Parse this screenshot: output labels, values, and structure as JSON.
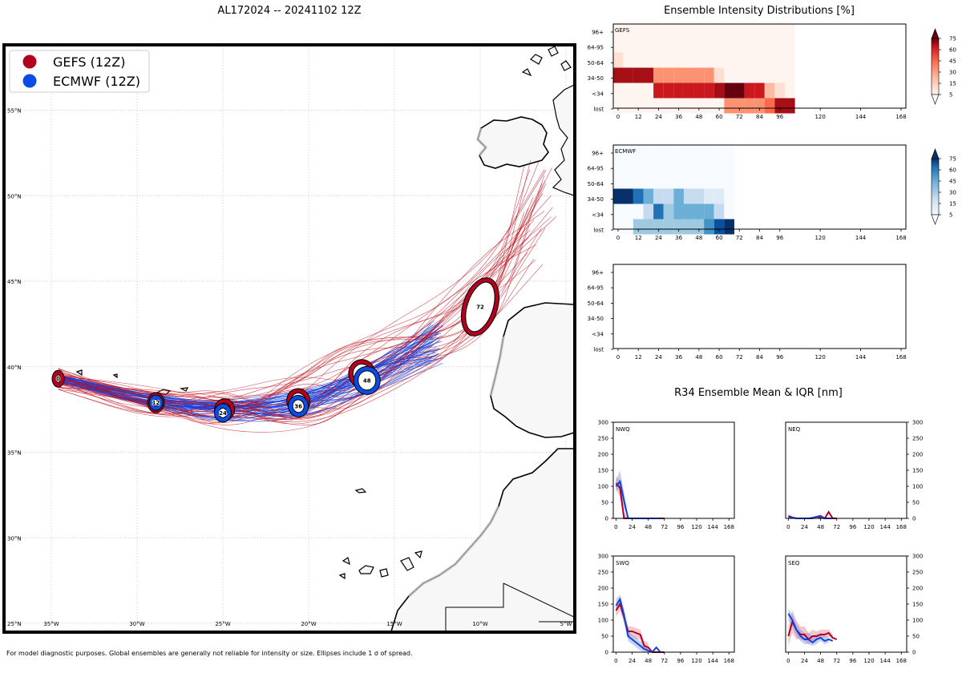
{
  "map": {
    "title": "AL172024 -- 20241102 12Z",
    "legend": [
      {
        "label": "GEFS (12Z)",
        "color": "#b2001e"
      },
      {
        "label": "ECMWF (12Z)",
        "color": "#0a4ce6"
      }
    ],
    "lat_labels": [
      "55°N",
      "50°N",
      "45°N",
      "40°N",
      "35°N",
      "30°N",
      "25°N"
    ],
    "lon_labels": [
      "35°W",
      "30°W",
      "25°W",
      "20°W",
      "15°W",
      "10°W",
      "5°W"
    ],
    "footer": "For model diagnostic purposes. Global ensembles are generally not reliable for intensity or size. Ellipses include 1 σ of spread.",
    "gefs_color": "#c0101e",
    "ecmwf_color": "#1040e0"
  },
  "chart_data": [
    {
      "type": "line",
      "title": "AL172024 -- 20241102 12Z",
      "xlabel": "Longitude",
      "ylabel": "Latitude",
      "xlim": [
        -37.7,
        -5.0
      ],
      "ylim": [
        25.0,
        58.0
      ],
      "series": [
        {
          "name": "GEFS (12Z) mean track",
          "color": "#b2001e",
          "x": [
            -34.6,
            -28.9,
            -24.9,
            -20.6,
            -16.9,
            -10.0
          ],
          "y": [
            39.3,
            37.9,
            37.5,
            38.0,
            39.6,
            43.5
          ],
          "hours": [
            0,
            12,
            24,
            36,
            48,
            72
          ]
        },
        {
          "name": "ECMWF (12Z) mean track",
          "color": "#0a4ce6",
          "x": [
            -34.6,
            -28.9,
            -25.0,
            -20.6,
            -16.6
          ],
          "y": [
            39.3,
            37.9,
            37.3,
            37.7,
            39.2
          ],
          "hours": [
            0,
            12,
            24,
            36,
            48
          ]
        }
      ],
      "markers": [
        {
          "model": "GEFS",
          "hour": "0",
          "lon": -34.6,
          "lat": 39.3
        },
        {
          "model": "GEFS",
          "hour": "12",
          "lon": -28.9,
          "lat": 37.9
        },
        {
          "model": "GEFS",
          "hour": "24",
          "lon": -24.9,
          "lat": 37.5
        },
        {
          "model": "GEFS",
          "hour": "36",
          "lon": -20.6,
          "lat": 38.0
        },
        {
          "model": "GEFS",
          "hour": "48",
          "lon": -16.9,
          "lat": 39.6
        },
        {
          "model": "GEFS",
          "hour": "72",
          "lon": -10.0,
          "lat": 43.5
        },
        {
          "model": "ECMWF",
          "hour": "12",
          "lon": -28.9,
          "lat": 37.9
        },
        {
          "model": "ECMWF",
          "hour": "24",
          "lon": -25.0,
          "lat": 37.3
        },
        {
          "model": "ECMWF",
          "hour": "36",
          "lon": -20.6,
          "lat": 37.7
        },
        {
          "model": "ECMWF",
          "hour": "48",
          "lon": -16.6,
          "lat": 39.2
        }
      ]
    },
    {
      "type": "heatmap",
      "title": "Ensemble Intensity Distributions [%]",
      "label": "GEFS",
      "rows": [
        "lost",
        "<34",
        "34-50",
        "50-64",
        "64-95",
        "96+"
      ],
      "hours": [
        0,
        6,
        12,
        18,
        24,
        30,
        36,
        42,
        48,
        54,
        60,
        66,
        72,
        78,
        84,
        90,
        96,
        102
      ],
      "values": [
        [
          0,
          0,
          0,
          0,
          0,
          0,
          0,
          0,
          0,
          0,
          5,
          40,
          40,
          40,
          40,
          50,
          90,
          90
        ],
        [
          0,
          0,
          0,
          5,
          70,
          70,
          75,
          75,
          75,
          70,
          90,
          95,
          95,
          75,
          70,
          30,
          10,
          0
        ],
        [
          90,
          90,
          90,
          90,
          40,
          40,
          40,
          40,
          40,
          40,
          10,
          0,
          0,
          0,
          0,
          0,
          0,
          0
        ],
        [
          10,
          0,
          0,
          0,
          0,
          0,
          0,
          0,
          0,
          0,
          0,
          0,
          0,
          0,
          0,
          0,
          0,
          0
        ],
        [
          3,
          3,
          3,
          3,
          3,
          3,
          3,
          3,
          3,
          3,
          3,
          3,
          3,
          3,
          3,
          3,
          3,
          3
        ],
        [
          3,
          3,
          3,
          3,
          3,
          3,
          3,
          3,
          3,
          3,
          3,
          3,
          3,
          3,
          3,
          3,
          3,
          3
        ]
      ]
    },
    {
      "type": "heatmap",
      "label": "ECMWF",
      "rows": [
        "lost",
        "<34",
        "34-50",
        "50-64",
        "64-95",
        "96+"
      ],
      "hours": [
        0,
        6,
        12,
        18,
        24,
        30,
        36,
        42,
        48,
        54,
        60,
        66
      ],
      "values": [
        [
          0,
          0,
          35,
          35,
          35,
          35,
          35,
          35,
          35,
          60,
          90,
          95
        ],
        [
          0,
          0,
          5,
          20,
          70,
          40,
          45,
          45,
          45,
          45,
          20,
          5
        ],
        [
          95,
          95,
          75,
          45,
          25,
          25,
          45,
          25,
          25,
          15,
          15,
          0
        ],
        [
          2,
          2,
          2,
          2,
          2,
          2,
          2,
          2,
          2,
          2,
          2,
          2
        ],
        [
          2,
          2,
          2,
          2,
          2,
          2,
          2,
          2,
          2,
          2,
          2,
          2
        ],
        [
          2,
          2,
          2,
          2,
          2,
          2,
          2,
          2,
          2,
          2,
          2,
          2
        ]
      ]
    },
    {
      "type": "heatmap",
      "label": "",
      "rows": [
        "lost",
        "<34",
        "34-50",
        "50-64",
        "64-95",
        "96+"
      ],
      "hours": [],
      "values": []
    },
    {
      "type": "line",
      "title": "R34 Ensemble Mean & IQR [nm]",
      "label": "NWQ",
      "ylim": [
        0,
        300
      ],
      "xlim": [
        -4,
        176
      ],
      "series": [
        {
          "name": "GEFS",
          "x": [
            0,
            6,
            12,
            18,
            24,
            30,
            36,
            42,
            48,
            54,
            60,
            66,
            72
          ],
          "y": [
            110,
            95,
            0,
            0,
            0,
            0,
            0,
            0,
            0,
            0,
            0,
            0,
            0
          ]
        },
        {
          "name": "ECMWF",
          "x": [
            0,
            6,
            12,
            18,
            24,
            30,
            36,
            42,
            48,
            54,
            60,
            66
          ],
          "y": [
            100,
            115,
            55,
            0,
            0,
            0,
            0,
            0,
            0,
            0,
            0,
            0
          ]
        }
      ],
      "iqr": [
        {
          "name": "GEFS",
          "x": [
            0,
            6,
            12,
            18,
            24
          ],
          "low": [
            90,
            70,
            0,
            0,
            0
          ],
          "high": [
            130,
            120,
            20,
            0,
            0
          ]
        },
        {
          "name": "ECMWF",
          "x": [
            0,
            6,
            12,
            18,
            24
          ],
          "low": [
            85,
            95,
            30,
            0,
            0
          ],
          "high": [
            120,
            150,
            80,
            5,
            0
          ]
        }
      ]
    },
    {
      "type": "line",
      "label": "NEQ",
      "ylim": [
        0,
        300
      ],
      "xlim": [
        -4,
        176
      ],
      "series": [
        {
          "name": "GEFS",
          "x": [
            0,
            6,
            12,
            18,
            24,
            30,
            36,
            42,
            48,
            54,
            60,
            66,
            72
          ],
          "y": [
            8,
            3,
            0,
            0,
            0,
            0,
            0,
            5,
            2,
            0,
            20,
            0,
            0
          ]
        },
        {
          "name": "ECMWF",
          "x": [
            0,
            6,
            12,
            18,
            24,
            30,
            36,
            42,
            48,
            54,
            60,
            66
          ],
          "y": [
            5,
            2,
            0,
            0,
            0,
            0,
            2,
            5,
            8,
            0,
            0,
            0
          ]
        }
      ],
      "iqr": []
    },
    {
      "type": "line",
      "label": "SWQ",
      "ylim": [
        0,
        300
      ],
      "xlim": [
        -4,
        176
      ],
      "series": [
        {
          "name": "GEFS",
          "x": [
            0,
            6,
            12,
            18,
            24,
            30,
            36,
            42,
            48,
            54,
            60,
            66,
            72
          ],
          "y": [
            130,
            150,
            110,
            65,
            65,
            60,
            55,
            20,
            15,
            0,
            0,
            0,
            0
          ]
        },
        {
          "name": "ECMWF",
          "x": [
            0,
            6,
            12,
            18,
            24,
            30,
            36,
            42,
            48,
            54,
            60,
            66
          ],
          "y": [
            145,
            165,
            115,
            50,
            40,
            30,
            20,
            10,
            5,
            0,
            15,
            0
          ]
        }
      ],
      "iqr": [
        {
          "name": "GEFS",
          "x": [
            0,
            6,
            12,
            18,
            24,
            30,
            36,
            42,
            48
          ],
          "low": [
            110,
            130,
            90,
            50,
            50,
            40,
            40,
            10,
            0
          ],
          "high": [
            150,
            170,
            130,
            80,
            80,
            75,
            70,
            35,
            30
          ]
        },
        {
          "name": "ECMWF",
          "x": [
            0,
            6,
            12,
            18,
            24,
            30,
            36,
            42,
            48
          ],
          "low": [
            125,
            145,
            95,
            35,
            25,
            15,
            5,
            0,
            0
          ],
          "high": [
            165,
            180,
            135,
            65,
            55,
            45,
            35,
            25,
            15
          ]
        }
      ]
    },
    {
      "type": "line",
      "label": "SEQ",
      "ylim": [
        0,
        300
      ],
      "xlim": [
        -4,
        176
      ],
      "series": [
        {
          "name": "GEFS",
          "x": [
            0,
            6,
            12,
            18,
            24,
            30,
            36,
            42,
            48,
            54,
            60,
            66,
            72
          ],
          "y": [
            50,
            95,
            70,
            55,
            55,
            40,
            50,
            50,
            55,
            55,
            60,
            45,
            40
          ]
        },
        {
          "name": "ECMWF",
          "x": [
            0,
            6,
            12,
            18,
            24,
            30,
            36,
            42,
            48,
            54,
            60,
            66
          ],
          "y": [
            120,
            100,
            70,
            50,
            40,
            40,
            30,
            40,
            45,
            35,
            40,
            35
          ]
        }
      ],
      "iqr": [
        {
          "name": "GEFS",
          "x": [
            0,
            6,
            12,
            18,
            24,
            30,
            36,
            42,
            48,
            54,
            60,
            66
          ],
          "low": [
            20,
            60,
            40,
            40,
            35,
            25,
            35,
            40,
            45,
            45,
            50,
            40
          ],
          "high": [
            80,
            130,
            100,
            80,
            80,
            60,
            70,
            65,
            70,
            70,
            70,
            55
          ]
        },
        {
          "name": "ECMWF",
          "x": [
            0,
            6,
            12,
            18,
            24,
            30,
            36,
            42,
            48,
            54,
            60
          ],
          "low": [
            100,
            80,
            50,
            35,
            25,
            25,
            20,
            25,
            35,
            25,
            30
          ],
          "high": [
            135,
            120,
            90,
            70,
            60,
            60,
            50,
            55,
            60,
            50,
            50
          ]
        }
      ]
    }
  ],
  "panels": {
    "intensity_title": "Ensemble Intensity Distributions [%]",
    "r34_title": "R34 Ensemble Mean & IQR [nm]",
    "row_labels": [
      "96+",
      "64-95",
      "50-64",
      "34-50",
      "<34",
      "lost"
    ],
    "hour_ticks": [
      "0",
      "12",
      "24",
      "36",
      "48",
      "60",
      "72",
      "84",
      "96",
      "120",
      "144",
      "168"
    ],
    "r34_hour_ticks": [
      "0",
      "24",
      "48",
      "72",
      "96",
      "120",
      "144",
      "168"
    ],
    "r34_y_ticks": [
      "0",
      "50",
      "100",
      "150",
      "200",
      "250",
      "300"
    ],
    "colorbar_ticks": [
      "5",
      "15",
      "30",
      "45",
      "60",
      "75"
    ],
    "gefs_label": "GEFS",
    "ecmwf_label": "ECMWF",
    "quadrants": [
      "NWQ",
      "NEQ",
      "SWQ",
      "SEQ"
    ]
  }
}
